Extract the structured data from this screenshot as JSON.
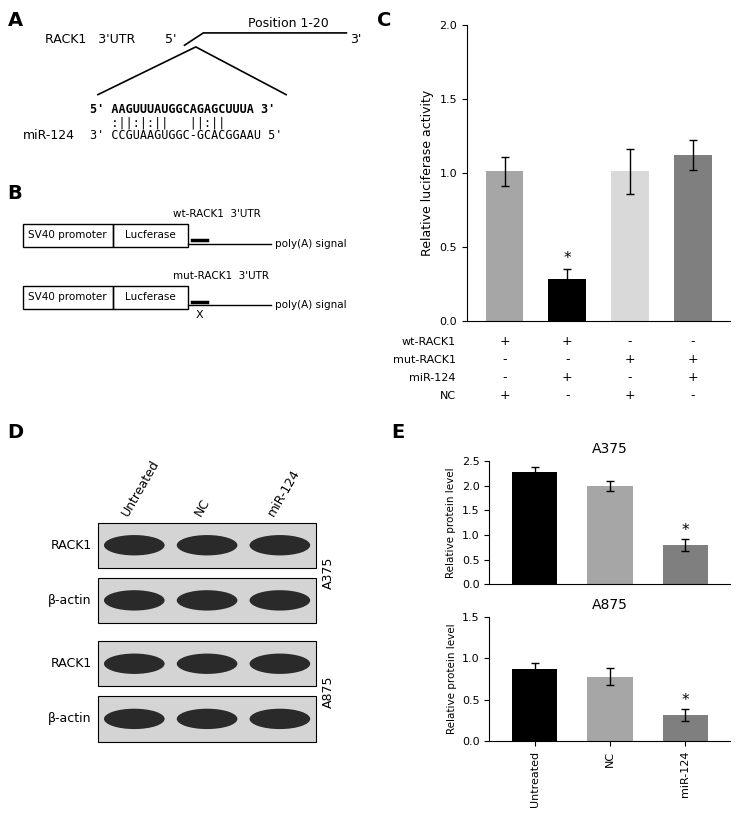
{
  "panel_labels": [
    "A",
    "B",
    "C",
    "D",
    "E"
  ],
  "panel_A": {
    "gene_label": "RACK1   3'UTR",
    "position_label": "Position 1-20",
    "end_5": "5'",
    "end_3": "3'",
    "target_sequence": "5' AAGUUUAUGGCAGAGCUUUA 3'",
    "pairing": "   :||:|:||   ||:||",
    "mirna_sequence": "3' CCGUAAGUGGC-GCACGGAAU 5'",
    "mirna_label": "miR-124"
  },
  "panel_B": {
    "promoter": "SV40 promoter",
    "reporter": "Lucferase",
    "poly_a": "poly(A) signal",
    "constructs": [
      {
        "label": "wt-RACK1  3'UTR"
      },
      {
        "label": "mut-RACK1  3'UTR",
        "mutation_mark": "X"
      }
    ]
  },
  "panel_D": {
    "lanes": [
      "Untreated",
      "NC",
      "miR-124"
    ],
    "blots": [
      {
        "cell_line": "A375",
        "rows": [
          "RACK1",
          "β-actin"
        ]
      },
      {
        "cell_line": "A875",
        "rows": [
          "RACK1",
          "β-actin"
        ]
      }
    ]
  },
  "chart_data": [
    {
      "type": "bar",
      "ylabel": "Relative luciferase activity",
      "categories": [
        null,
        null,
        null,
        null
      ],
      "values": [
        1.01,
        0.28,
        1.01,
        1.12
      ],
      "errors": [
        0.1,
        0.07,
        0.15,
        0.1
      ],
      "colors": [
        "#a6a6a6",
        "#000000",
        "#d9d9d9",
        "#7f7f7f"
      ],
      "ylim": [
        0,
        2.0
      ],
      "yticks": [
        {
          "value": 0,
          "label": "0.0"
        },
        {
          "value": 0.5,
          "label": "0.5"
        },
        {
          "value": 1.0,
          "label": "1.0"
        },
        {
          "value": 1.5,
          "label": "1.5"
        },
        {
          "value": 2.0,
          "label": "2.0"
        }
      ],
      "significance": [
        null,
        "*",
        null,
        null
      ],
      "conditions": [
        {
          "name": "wt-RACK1",
          "marks": [
            "+",
            "+",
            "-",
            "-"
          ]
        },
        {
          "name": "mut-RACK1",
          "marks": [
            "-",
            "-",
            "+",
            "+"
          ]
        },
        {
          "name": "miR-124",
          "marks": [
            "-",
            "+",
            "-",
            "+"
          ]
        },
        {
          "name": "NC",
          "marks": [
            "+",
            "-",
            "+",
            "-"
          ]
        }
      ]
    },
    {
      "type": "bar",
      "title": "A375",
      "ylabel": "Relative protein level",
      "categories": [
        null,
        null,
        null
      ],
      "values": [
        2.27,
        1.99,
        0.8
      ],
      "errors": [
        0.1,
        0.1,
        0.12
      ],
      "colors": [
        "#000000",
        "#a6a6a6",
        "#7f7f7f"
      ],
      "ylim": [
        0,
        2.5
      ],
      "yticks": [
        {
          "value": 0,
          "label": "0.0"
        },
        {
          "value": 0.5,
          "label": "0.5"
        },
        {
          "value": 1.0,
          "label": "1.0"
        },
        {
          "value": 1.5,
          "label": "1.5"
        },
        {
          "value": 2.0,
          "label": "2.0"
        },
        {
          "value": 2.5,
          "label": "2.5"
        }
      ],
      "significance": [
        null,
        null,
        "*"
      ]
    },
    {
      "type": "bar",
      "title": "A875",
      "ylabel": "Relative protein level",
      "categories": [
        "Untreated",
        "NC",
        "miR-124"
      ],
      "values": [
        0.87,
        0.78,
        0.31
      ],
      "errors": [
        0.08,
        0.1,
        0.07
      ],
      "colors": [
        "#000000",
        "#a6a6a6",
        "#7f7f7f"
      ],
      "ylim": [
        0,
        1.5
      ],
      "yticks": [
        {
          "value": 0,
          "label": "0.0"
        },
        {
          "value": 0.5,
          "label": "0.5"
        },
        {
          "value": 1.0,
          "label": "1.0"
        },
        {
          "value": 1.5,
          "label": "1.5"
        }
      ],
      "significance": [
        null,
        null,
        "*"
      ]
    }
  ]
}
